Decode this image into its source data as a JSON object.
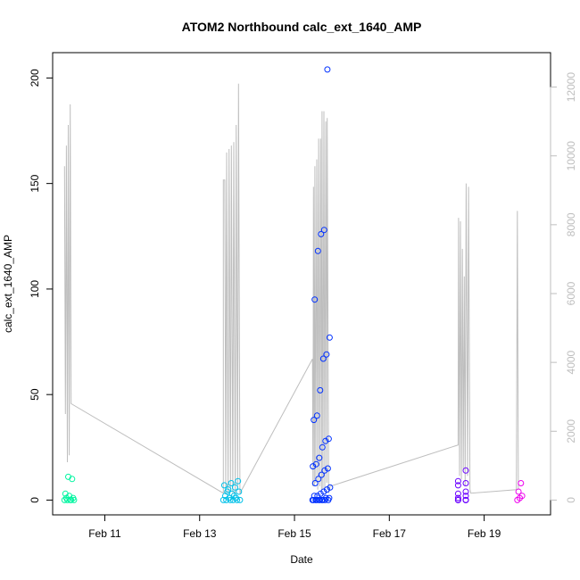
{
  "chart_data": {
    "type": "scatter",
    "title": "ATOM2 Northbound calc_ext_1640_AMP",
    "xlabel": "Date",
    "ylabel": "calc_ext_1640_AMP",
    "x_axis": {
      "unit": "days in February",
      "range": [
        9.9,
        20.4
      ],
      "ticks": [
        {
          "label": "Feb 11",
          "value": 11
        },
        {
          "label": "Feb 13",
          "value": 13
        },
        {
          "label": "Feb 15",
          "value": 15
        },
        {
          "label": "Feb 17",
          "value": 17
        },
        {
          "label": "Feb 19",
          "value": 19
        }
      ]
    },
    "y_left": {
      "range": [
        -7,
        212
      ],
      "ticks": [
        "0",
        "50",
        "100",
        "150",
        "200"
      ]
    },
    "y_right": {
      "color": "#bebebe",
      "range": [
        -430,
        13000
      ],
      "ticks": [
        "0",
        "2000",
        "4000",
        "6000",
        "8000",
        "10000",
        "12000"
      ]
    },
    "grid": false,
    "legend": "none",
    "point_clusters": [
      {
        "color": "#00f5a0",
        "x_start": 10.15,
        "x_end": 10.35,
        "values": [
          0,
          0,
          0,
          0,
          0,
          1,
          1,
          2,
          3,
          10,
          11
        ]
      },
      {
        "color": "#00c0e8",
        "x_start": 13.5,
        "x_end": 13.85,
        "values": [
          0,
          0,
          0,
          0,
          0,
          0,
          1,
          1,
          2,
          3,
          4,
          5,
          6,
          7,
          8,
          9,
          4,
          2
        ]
      },
      {
        "color": "#0030ff",
        "x_start": 15.38,
        "x_end": 15.75,
        "values": [
          0,
          0,
          0,
          0,
          0,
          0,
          0,
          0,
          0,
          0,
          1,
          1,
          2,
          2,
          3,
          4,
          5,
          6,
          8,
          10,
          12,
          14,
          15,
          16,
          17,
          20,
          25,
          28,
          29,
          38,
          40,
          52,
          67,
          69,
          77,
          95,
          118,
          126,
          128,
          204
        ]
      },
      {
        "color": "#6a00ff",
        "x_start": 18.45,
        "x_end": 18.75,
        "values": [
          0,
          0,
          0,
          0,
          0,
          0,
          1,
          2,
          3,
          4,
          7,
          8,
          9,
          14
        ]
      },
      {
        "color": "#ee00ee",
        "x_start": 19.7,
        "x_end": 19.8,
        "values": [
          0,
          1,
          2,
          4,
          8
        ]
      }
    ],
    "gray_series": {
      "color": "#bebebe",
      "axis": "right",
      "path": [
        [
          10.15,
          9700
        ],
        [
          10.17,
          2500
        ],
        [
          10.19,
          10300
        ],
        [
          10.21,
          1100
        ],
        [
          10.23,
          10900
        ],
        [
          10.25,
          1300
        ],
        [
          10.27,
          11500
        ],
        [
          10.29,
          2800
        ],
        [
          13.5,
          200
        ],
        [
          13.5,
          9300
        ],
        [
          13.53,
          9300
        ],
        [
          13.55,
          200
        ],
        [
          13.57,
          10100
        ],
        [
          13.6,
          200
        ],
        [
          13.62,
          10200
        ],
        [
          13.65,
          300
        ],
        [
          13.67,
          10300
        ],
        [
          13.7,
          200
        ],
        [
          13.72,
          10400
        ],
        [
          13.75,
          200
        ],
        [
          13.77,
          10900
        ],
        [
          13.8,
          300
        ],
        [
          13.82,
          12100
        ],
        [
          13.85,
          200
        ],
        [
          15.38,
          4100
        ],
        [
          15.39,
          400
        ],
        [
          15.4,
          9100
        ],
        [
          15.42,
          400
        ],
        [
          15.43,
          9700
        ],
        [
          15.45,
          500
        ],
        [
          15.47,
          9900
        ],
        [
          15.49,
          300
        ],
        [
          15.51,
          10500
        ],
        [
          15.53,
          400
        ],
        [
          15.55,
          10500
        ],
        [
          15.57,
          300
        ],
        [
          15.58,
          11300
        ],
        [
          15.6,
          300
        ],
        [
          15.62,
          11300
        ],
        [
          15.64,
          300
        ],
        [
          15.66,
          11000
        ],
        [
          15.68,
          500
        ],
        [
          15.69,
          11100
        ],
        [
          15.72,
          200
        ],
        [
          15.75,
          400
        ],
        [
          18.45,
          1600
        ],
        [
          18.46,
          8200
        ],
        [
          18.48,
          700
        ],
        [
          18.5,
          8100
        ],
        [
          18.52,
          600
        ],
        [
          18.54,
          7300
        ],
        [
          18.56,
          900
        ],
        [
          18.58,
          6500
        ],
        [
          18.6,
          400
        ],
        [
          18.62,
          9200
        ],
        [
          18.65,
          700
        ],
        [
          18.67,
          9100
        ],
        [
          18.7,
          300
        ],
        [
          18.72,
          200
        ],
        [
          19.68,
          300
        ],
        [
          19.7,
          8400
        ],
        [
          19.72,
          300
        ]
      ]
    }
  }
}
